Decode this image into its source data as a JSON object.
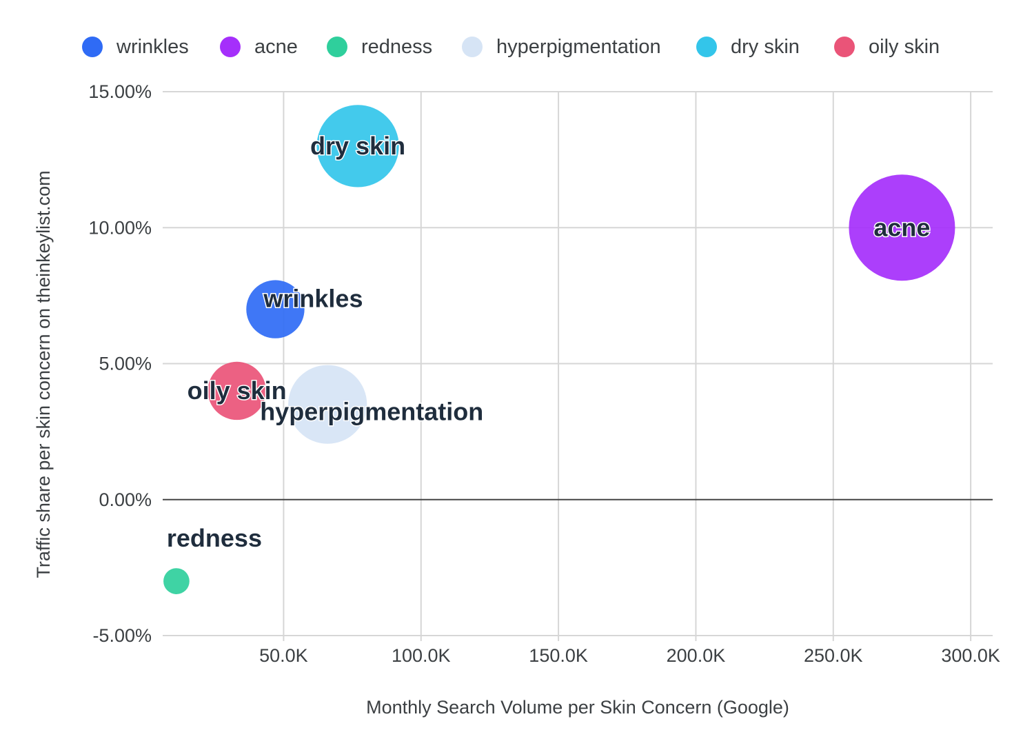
{
  "chart_data": {
    "type": "scatter",
    "title": "",
    "xlabel": "Monthly Search Volume per Skin Concern (Google)",
    "ylabel": "Traffic share per skin concern on theinkeylist.com",
    "xlim": [
      6000,
      308000
    ],
    "ylim": [
      -5,
      15
    ],
    "x_ticks": [
      50000,
      100000,
      150000,
      200000,
      250000,
      300000
    ],
    "x_tick_labels": [
      "50.0K",
      "100.0K",
      "150.0K",
      "200.0K",
      "250.0K",
      "300.0K"
    ],
    "y_ticks": [
      15,
      10,
      5,
      0,
      -5
    ],
    "y_tick_labels": [
      "15.00%",
      "10.00%",
      "5.00%",
      "0.00%",
      "-5.00%"
    ],
    "grid": true,
    "legend_position": "top",
    "series": [
      {
        "name": "wrinkles",
        "label": "wrinkles",
        "color": "#2f6bf5",
        "x": 47000,
        "y": 7.0,
        "size": 6000
      },
      {
        "name": "acne",
        "label": "acne",
        "color": "#a52ffb",
        "x": 275000,
        "y": 10.0,
        "size": 20000
      },
      {
        "name": "redness",
        "label": "redness",
        "color": "#2fcf9c",
        "x": 11000,
        "y": -3.0,
        "size": 1200
      },
      {
        "name": "hyperpigmentation",
        "label": "hyperpigmentation",
        "color": "#d6e4f5",
        "x": 66000,
        "y": 3.5,
        "size": 11000
      },
      {
        "name": "dry skin",
        "label": "dry skin",
        "color": "#33c5ea",
        "x": 77000,
        "y": 13.0,
        "size": 12000
      },
      {
        "name": "oily skin",
        "label": "oily skin",
        "color": "#ea5478",
        "x": 33000,
        "y": 4.0,
        "size": 6000
      }
    ]
  }
}
